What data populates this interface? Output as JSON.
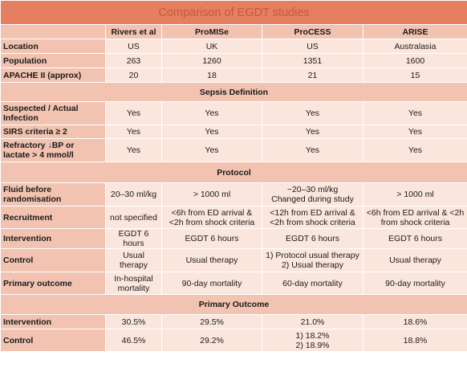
{
  "title": "Comparison of EGDT studies",
  "columns": [
    "Rivers et al",
    "ProMISe",
    "ProCESS",
    "ARISE"
  ],
  "groups": [
    {
      "rows": [
        {
          "label": "Location",
          "values": [
            "US",
            "UK",
            "US",
            "Australasia"
          ]
        },
        {
          "label": "Population",
          "values": [
            "263",
            "1260",
            "1351",
            "1600"
          ]
        },
        {
          "label": "APACHE II (approx)",
          "values": [
            "20",
            "18",
            "21",
            "15"
          ]
        }
      ]
    },
    {
      "section": "Sepsis Definition",
      "rows": [
        {
          "label": "Suspected / Actual Infection",
          "values": [
            "Yes",
            "Yes",
            "Yes",
            "Yes"
          ]
        },
        {
          "label": "SIRS criteria ≥ 2",
          "values": [
            "Yes",
            "Yes",
            "Yes",
            "Yes"
          ]
        },
        {
          "label": "Refractory ↓BP or lactate > 4 mmol/l",
          "values": [
            "Yes",
            "Yes",
            "Yes",
            "Yes"
          ]
        }
      ]
    },
    {
      "section": "Protocol",
      "rows": [
        {
          "label": "Fluid before randomisation",
          "values": [
            "20–30 ml/kg",
            "> 1000 ml",
            "~20–30 ml/kg\nChanged during study",
            "> 1000 ml"
          ]
        },
        {
          "label": "Recruitment",
          "values": [
            "not specified",
            "<6h from ED arrival & <2h from shock criteria",
            "<12h from ED arrival & <2h from shock criteria",
            "<6h from ED arrival & <2h from shock criteria"
          ]
        },
        {
          "label": "Intervention",
          "values": [
            "EGDT 6 hours",
            "EGDT 6 hours",
            "EGDT 6 hours",
            "EGDT 6 hours"
          ]
        },
        {
          "label": "Control",
          "values": [
            "Usual therapy",
            "Usual therapy",
            "1) Protocol usual therapy\n2) Usual therapy",
            "Usual therapy"
          ]
        },
        {
          "label": "Primary outcome",
          "values": [
            "In-hospital mortality",
            "90-day mortality",
            "60-day mortality",
            "90-day mortality"
          ]
        }
      ]
    },
    {
      "section": "Primary Outcome",
      "rows": [
        {
          "label": "Intervention",
          "values": [
            "30.5%",
            "29.5%",
            "21.0%",
            "18.6%"
          ]
        },
        {
          "label": "Control",
          "values": [
            "46.5%",
            "29.2%",
            "1) 18.2%\n2) 18.9%",
            "18.8%"
          ]
        }
      ]
    }
  ]
}
